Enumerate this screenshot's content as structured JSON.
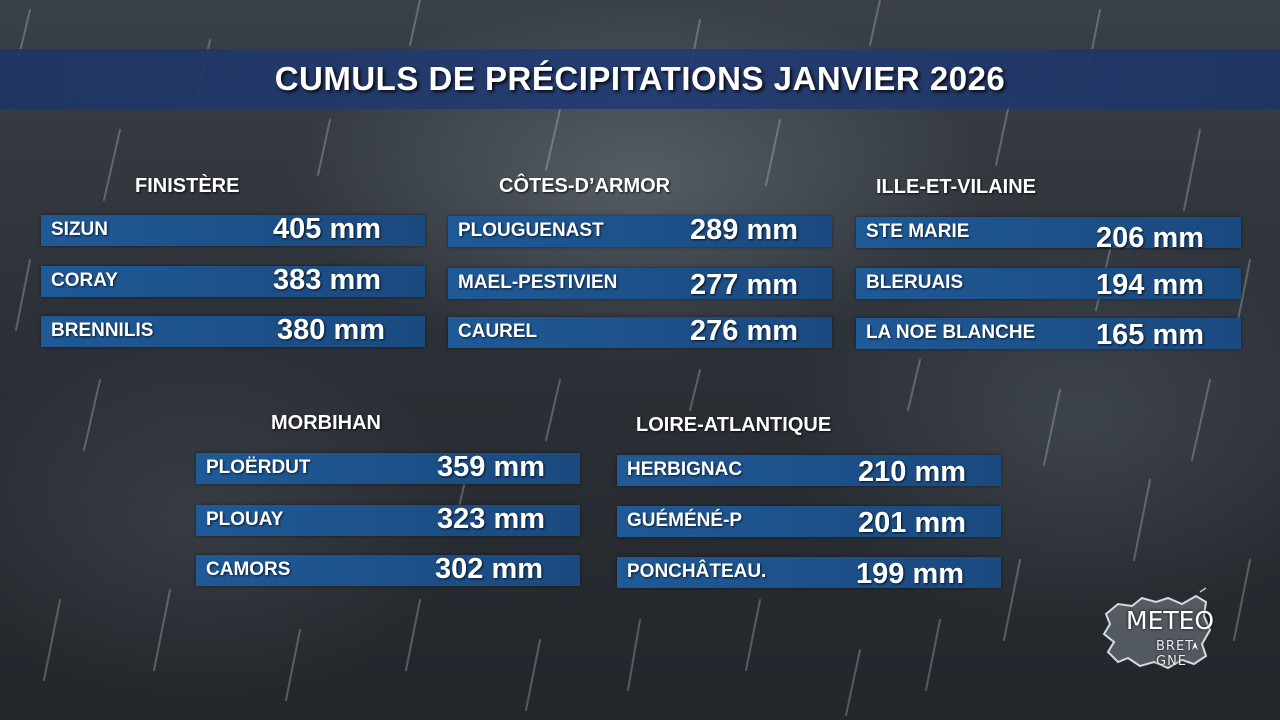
{
  "title": "CUMULS DE PRÉCIPITATIONS JANVIER 2026",
  "departments": [
    {
      "name": "FINISTÈRE",
      "stations": [
        {
          "name": "SIZUN",
          "value": "405 mm"
        },
        {
          "name": "CORAY",
          "value": "383 mm"
        },
        {
          "name": "BRENNILIS",
          "value": "380 mm"
        }
      ]
    },
    {
      "name": "CÔTES-D’ARMOR",
      "stations": [
        {
          "name": "PLOUGUENAST",
          "value": "289 mm"
        },
        {
          "name": "MAEL-PESTIVIEN",
          "value": "277 mm"
        },
        {
          "name": "CAUREL",
          "value": "276 mm"
        }
      ]
    },
    {
      "name": "ILLE-ET-VILAINE",
      "stations": [
        {
          "name": "STE MARIE",
          "value": "206 mm"
        },
        {
          "name": "BLERUAIS",
          "value": "194 mm"
        },
        {
          "name": "LA NOE BLANCHE",
          "value": "165 mm"
        }
      ]
    },
    {
      "name": "MORBIHAN",
      "stations": [
        {
          "name": "PLOËRDUT",
          "value": "359 mm"
        },
        {
          "name": "PLOUAY",
          "value": "323 mm"
        },
        {
          "name": "CAMORS",
          "value": "302 mm"
        }
      ]
    },
    {
      "name": "LOIRE-ATLANTIQUE",
      "stations": [
        {
          "name": "HERBIGNAC",
          "value": "210 mm"
        },
        {
          "name": "GUÉMÉNÉ-P",
          "value": "201 mm"
        },
        {
          "name": "PONCHÂTEAU.",
          "value": "199 mm"
        }
      ]
    }
  ],
  "logo": {
    "line1": "METEO",
    "line2": "BRET GNE"
  },
  "colors": {
    "title_bar": "#23396e",
    "row_bar": "#1f5a97",
    "text": "#ffffff",
    "background": "#2c3137"
  }
}
